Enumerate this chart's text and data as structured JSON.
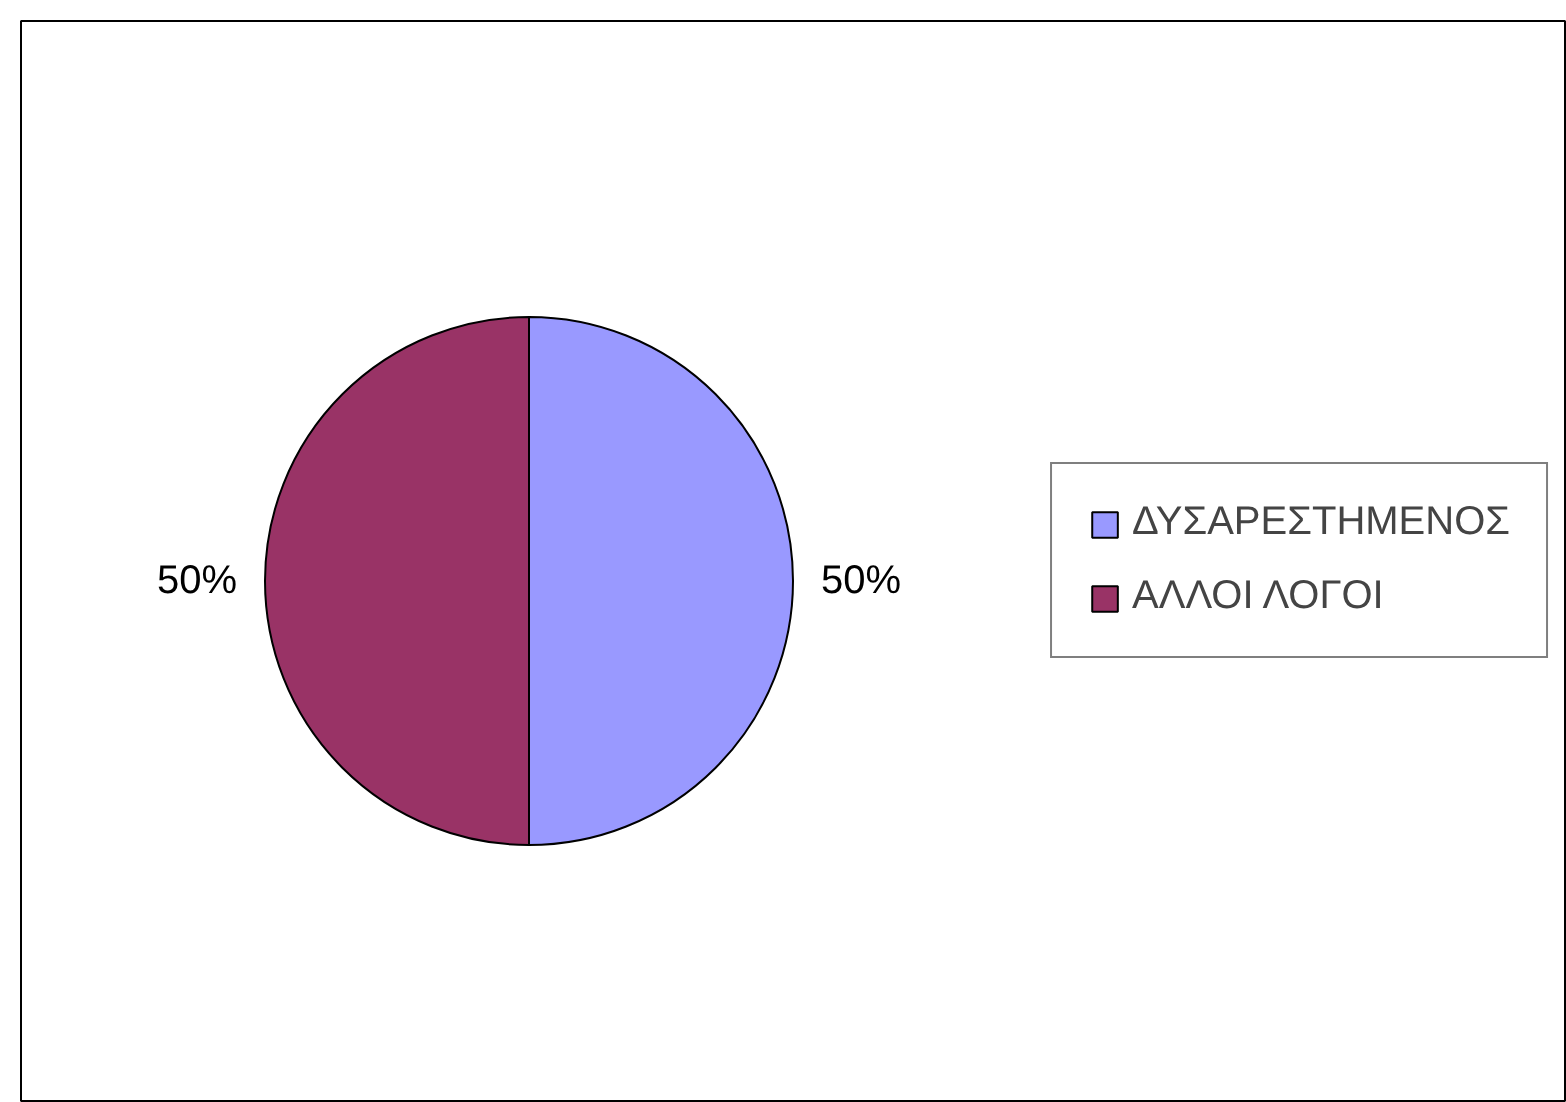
{
  "chart_data": {
    "type": "pie",
    "categories": [
      "ΔΥΣΑΡΕΣΤΗΜΕΝΟΣ",
      "ΑΛΛΟΙ ΛΟΓΟΙ"
    ],
    "values": [
      50,
      50
    ],
    "colors": [
      "#9999ff",
      "#993366"
    ],
    "value_labels": [
      "50%",
      "50%"
    ],
    "legend": "right"
  }
}
